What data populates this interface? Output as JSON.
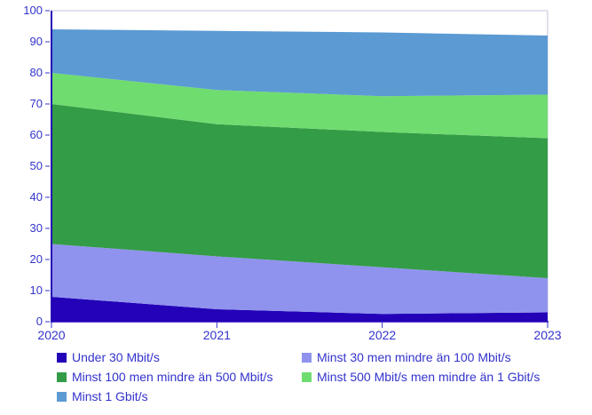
{
  "chart_data": {
    "type": "area",
    "stacked": true,
    "unit": "percent",
    "title": "",
    "xlabel": "",
    "ylabel": "",
    "x": [
      2020,
      2021,
      2022,
      2023
    ],
    "x_tick_labels": [
      "2020",
      "2021",
      "2022",
      "2023"
    ],
    "ylim": [
      0,
      100
    ],
    "y_tick_step": 10,
    "y_tick_labels": [
      "0",
      "10",
      "20",
      "30",
      "40",
      "50",
      "60",
      "70",
      "80",
      "90",
      "100"
    ],
    "grid": false,
    "legend_position": "bottom",
    "series": [
      {
        "name": "Under 30 Mbit/s",
        "color": "#2302b8",
        "values": [
          8,
          4,
          2.5,
          3
        ],
        "cumulative_top": [
          8,
          4,
          2.5,
          3
        ]
      },
      {
        "name": "Minst 30 men mindre än 100 Mbit/s",
        "color": "#8f93ee",
        "values": [
          17,
          17,
          15,
          11
        ],
        "cumulative_top": [
          25,
          21,
          17.5,
          14
        ]
      },
      {
        "name": "Minst 100 men mindre än 500 Mbit/s",
        "color": "#339c46",
        "values": [
          45,
          42.5,
          43.5,
          45
        ],
        "cumulative_top": [
          70,
          63.5,
          61,
          59
        ]
      },
      {
        "name": "Minst 500 Mbit/s men mindre än 1 Gbit/s",
        "color": "#6fdc6f",
        "values": [
          10,
          11,
          11.5,
          14
        ],
        "cumulative_top": [
          80,
          74.5,
          72.5,
          73
        ]
      },
      {
        "name": "Minst 1 Gbit/s",
        "color": "#5b9ad3",
        "values": [
          14,
          19,
          20.5,
          19
        ],
        "cumulative_top": [
          94,
          93.5,
          93,
          92
        ]
      }
    ],
    "colors": {
      "axis_line": "#2505b5",
      "tick_and_label_text": "#3333cc",
      "plot_frame": "#d6d6e8",
      "background": "#ffffff"
    }
  }
}
